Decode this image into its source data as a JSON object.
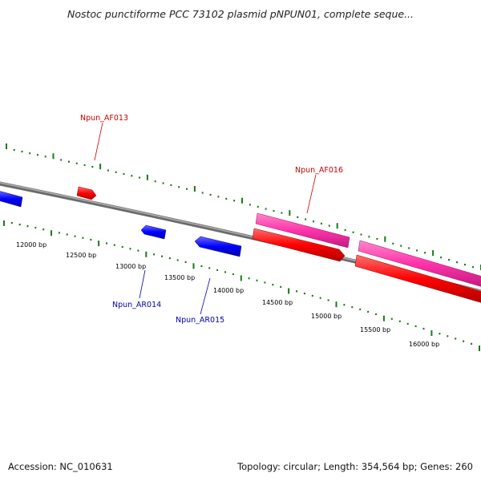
{
  "title": "Nostoc punctiforme PCC 73102 plasmid pNPUN01, complete seque...",
  "footer": {
    "accession": "Accession: NC_010631",
    "topology": "Topology: circular; Length: 354,564 bp; Genes: 260"
  },
  "scale_labels": [
    "12000 bp",
    "12500 bp",
    "13000 bp",
    "13500 bp",
    "14000 bp",
    "14500 bp",
    "15000 bp",
    "15500 bp",
    "16000 bp"
  ],
  "gene_labels": {
    "af013": "Npun_AF013",
    "af016": "Npun_AF016",
    "ar014": "Npun_AR014",
    "ar015": "Npun_AR015"
  },
  "colors": {
    "forward_gene": "#ff0000",
    "reverse_gene": "#0000ff",
    "feature": "#ff33aa",
    "backbone": "#808080",
    "ticks": "#1a7a1a",
    "forward_label": "#cc0000",
    "reverse_label": "#0000aa"
  }
}
